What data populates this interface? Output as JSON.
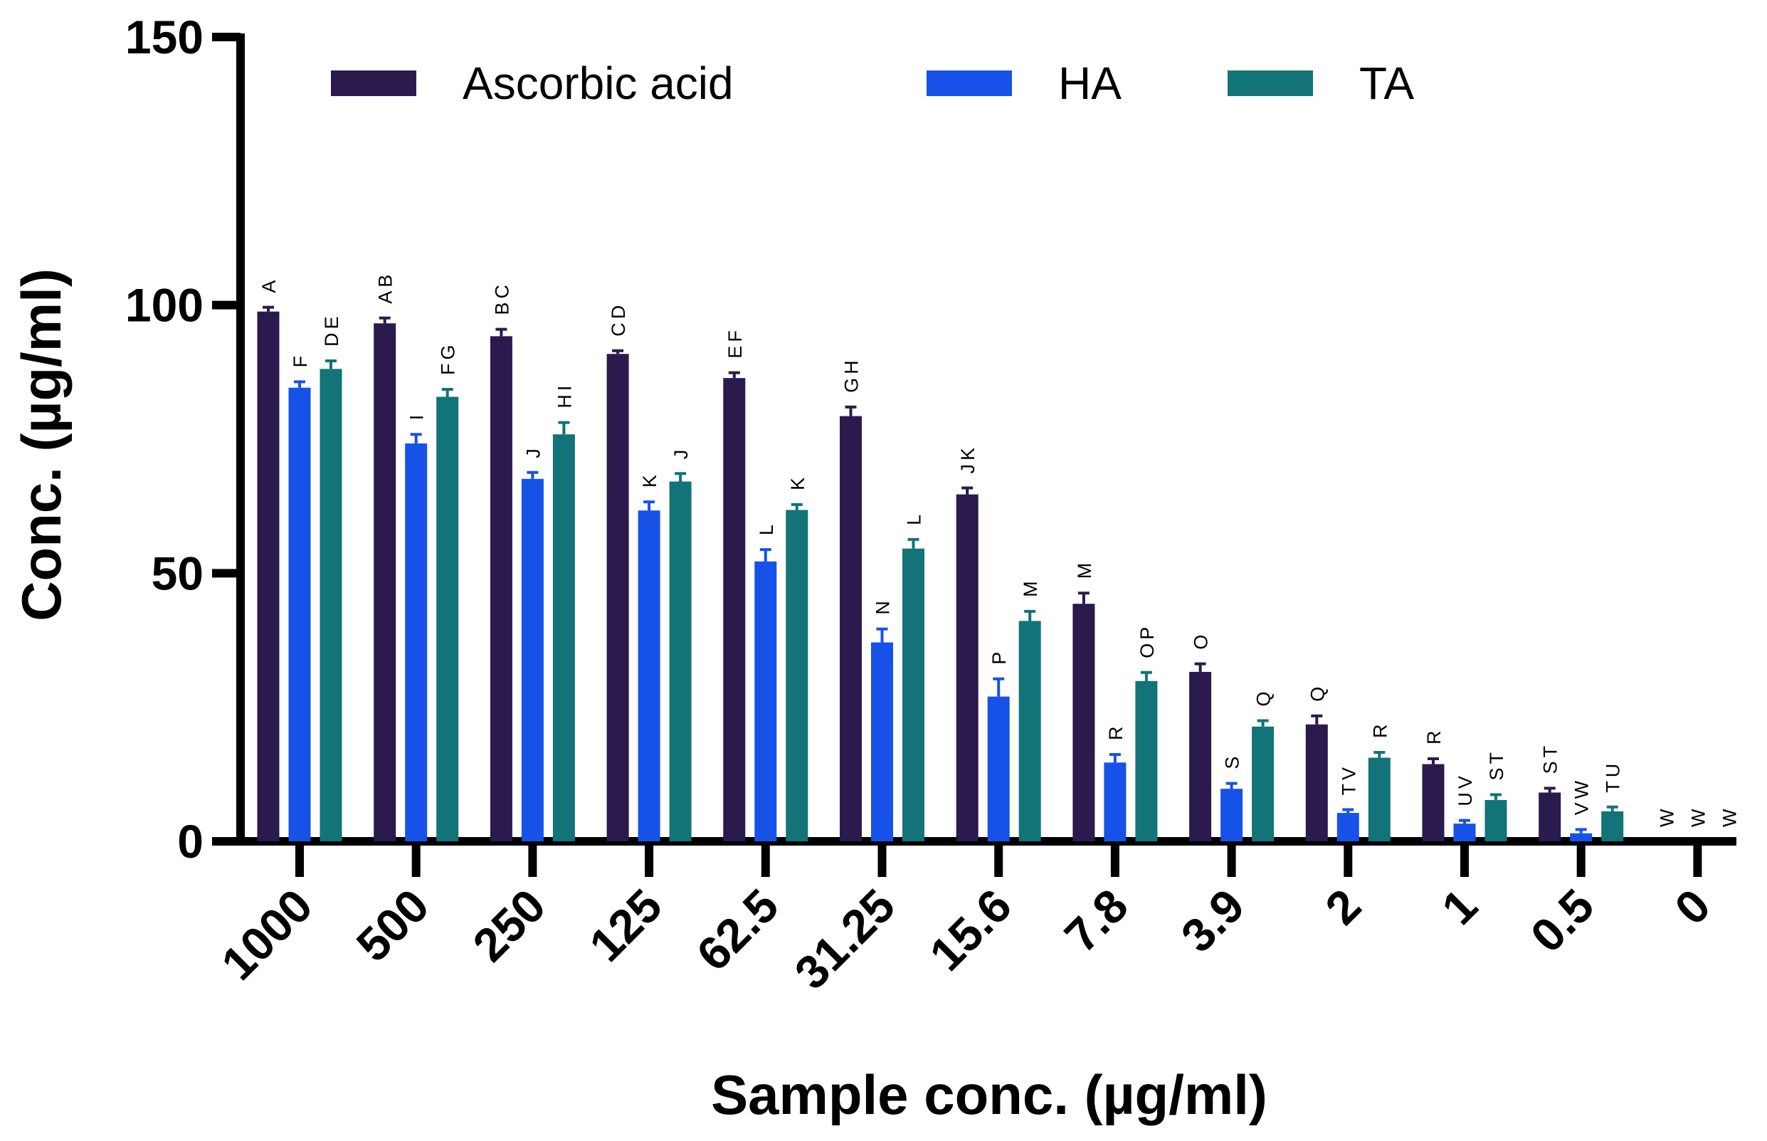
{
  "chart_data": {
    "type": "bar",
    "title": "",
    "xlabel": "Sample conc. (µg/ml)",
    "ylabel": "Conc. (µg/ml)",
    "ylim": [
      0,
      150
    ],
    "yticks": [
      "0",
      "50",
      "100",
      "150"
    ],
    "ytick_values": [
      0,
      50,
      100,
      150
    ],
    "categories": [
      "1000",
      "500",
      "250",
      "125",
      "62.5",
      "31.25",
      "15.6",
      "7.8",
      "3.9",
      "2",
      "1",
      "0.5",
      "0"
    ],
    "legend_position": "top",
    "series": [
      {
        "name": "Ascorbic acid",
        "color": "#2a1a4d",
        "values": [
          98.8,
          96.6,
          94.2,
          90.9,
          86.4,
          79.3,
          64.7,
          44.3,
          31.6,
          21.8,
          14.4,
          9.1,
          0
        ],
        "errors": [
          0.8,
          1.0,
          1.3,
          0.6,
          1.0,
          1.7,
          1.2,
          2.0,
          1.5,
          1.6,
          1.0,
          0.8,
          0
        ],
        "labels": [
          "A",
          "AB",
          "BC",
          "CD",
          "EF",
          "GH",
          "JK",
          "M",
          "O",
          "Q",
          "R",
          "ST",
          "W"
        ]
      },
      {
        "name": "HA",
        "color": "#1652e8",
        "values": [
          84.6,
          74.2,
          67.6,
          61.7,
          52.2,
          37.1,
          27.0,
          14.7,
          9.8,
          5.3,
          3.3,
          1.5,
          0
        ],
        "errors": [
          1.1,
          1.7,
          1.2,
          1.6,
          2.2,
          2.5,
          3.3,
          1.5,
          1.0,
          0.6,
          0.6,
          0.7,
          0
        ],
        "labels": [
          "F",
          "I",
          "J",
          "K",
          "L",
          "N",
          "P",
          "R",
          "S",
          "TV",
          "UV",
          "VW",
          "W"
        ]
      },
      {
        "name": "TA",
        "color": "#127378",
        "values": [
          88.1,
          82.9,
          75.9,
          67.1,
          61.8,
          54.6,
          41.1,
          29.9,
          21.4,
          15.6,
          7.7,
          5.6,
          0
        ],
        "errors": [
          1.5,
          1.4,
          2.2,
          1.5,
          1.0,
          1.7,
          1.8,
          1.6,
          1.1,
          1.0,
          1.0,
          0.8,
          0
        ],
        "labels": [
          "DE",
          "FG",
          "HI",
          "J",
          "K",
          "L",
          "M",
          "OP",
          "Q",
          "R",
          "ST",
          "TU",
          "W"
        ]
      }
    ]
  }
}
